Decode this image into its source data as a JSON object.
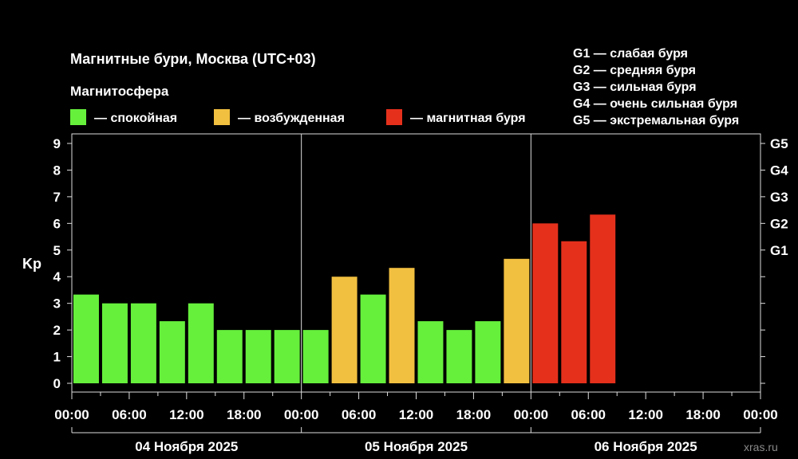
{
  "chart_data": {
    "type": "bar",
    "title": "Магнитные бури, Москва (UTC+03)",
    "subtitle": "Магнитосфера",
    "ylabel": "Kp",
    "ylim": [
      0,
      9
    ],
    "yticks": [
      "0",
      "1",
      "2",
      "3",
      "4",
      "5",
      "6",
      "7",
      "8",
      "9"
    ],
    "g_ticks": [
      {
        "label": "G1",
        "kp": 5
      },
      {
        "label": "G2",
        "kp": 6
      },
      {
        "label": "G3",
        "kp": 7
      },
      {
        "label": "G4",
        "kp": 8
      },
      {
        "label": "G5",
        "kp": 9
      }
    ],
    "legend": [
      {
        "label": "— спокойная",
        "color": "#66f03c"
      },
      {
        "label": "— возбужденная",
        "color": "#f2c040"
      },
      {
        "label": "— магнитная буря",
        "color": "#e5301c"
      }
    ],
    "g_legend": [
      "G1 — слабая буря",
      "G2 — средняя буря",
      "G3 — сильная буря",
      "G4 — очень сильная буря",
      "G5 — экстремальная буря"
    ],
    "x_ticks": [
      "00:00",
      "06:00",
      "12:00",
      "18:00",
      "00:00",
      "06:00",
      "12:00",
      "18:00",
      "00:00",
      "06:00",
      "12:00",
      "18:00",
      "00:00"
    ],
    "days": [
      "04 Ноября 2025",
      "05 Ноября 2025",
      "06 Ноября 2025"
    ],
    "intervals": [
      "00-03",
      "03-06",
      "06-09",
      "09-12",
      "12-15",
      "15-18",
      "18-21",
      "21-24"
    ],
    "values": [
      3.33,
      3,
      3,
      2.33,
      3,
      2,
      2,
      2,
      2,
      4,
      3.33,
      4.33,
      2.33,
      2,
      2.33,
      4.67,
      6,
      5.33,
      6.33
    ],
    "levels": [
      "quiet",
      "quiet",
      "quiet",
      "quiet",
      "quiet",
      "quiet",
      "quiet",
      "quiet",
      "quiet",
      "active",
      "quiet",
      "active",
      "quiet",
      "quiet",
      "quiet",
      "active",
      "storm",
      "storm",
      "storm"
    ],
    "level_colors": {
      "quiet": "#66f03c",
      "active": "#f2c040",
      "storm": "#e5301c"
    }
  },
  "watermark": "xras.ru"
}
